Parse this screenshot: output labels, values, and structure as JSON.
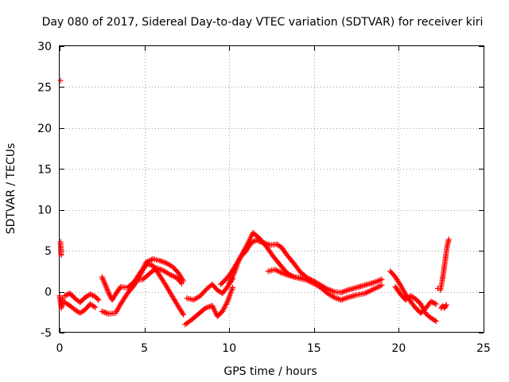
{
  "chart_data": {
    "type": "scatter",
    "title": "Day 080 of 2017, Sidereal Day-to-day VTEC variation (SDTVAR) for receiver kiri",
    "xlabel": "GPS time / hours",
    "ylabel": "SDTVAR / TECUs",
    "xlim": [
      0,
      25
    ],
    "ylim": [
      -5,
      30
    ],
    "xticks": [
      0,
      5,
      10,
      15,
      20,
      25
    ],
    "yticks": [
      -5,
      0,
      5,
      10,
      15,
      20,
      25,
      30
    ],
    "xtick_labels": [
      "0",
      "5",
      "10",
      "15",
      "20",
      "25"
    ],
    "ytick_labels": [
      "-5",
      "0",
      "5",
      "10",
      "15",
      "20",
      "25",
      "30"
    ],
    "grid": true,
    "marker": "+",
    "color": "#ff0000",
    "series": [
      {
        "name": "SDTVAR",
        "tracks": [
          [
            [
              0.05,
              25.8
            ]
          ],
          [
            [
              0.05,
              6.1
            ],
            [
              0.08,
              4.6
            ],
            [
              0.1,
              4.5
            ]
          ],
          [
            [
              0.0,
              -0.5
            ],
            [
              0.05,
              -1.2
            ],
            [
              0.1,
              -2.0
            ],
            [
              0.15,
              -1.5
            ],
            [
              0.2,
              -0.8
            ]
          ],
          [
            [
              0.3,
              -0.5
            ],
            [
              0.6,
              -0.2
            ],
            [
              0.9,
              -0.8
            ],
            [
              1.2,
              -1.3
            ],
            [
              1.5,
              -0.7
            ],
            [
              1.8,
              -0.3
            ],
            [
              2.1,
              -0.6
            ],
            [
              2.3,
              -1.0
            ]
          ],
          [
            [
              0.3,
              -1.3
            ],
            [
              0.6,
              -1.7
            ],
            [
              0.9,
              -2.2
            ],
            [
              1.2,
              -2.6
            ],
            [
              1.5,
              -2.2
            ],
            [
              1.8,
              -1.5
            ],
            [
              2.1,
              -1.9
            ]
          ],
          [
            [
              2.5,
              1.8
            ],
            [
              2.7,
              0.8
            ],
            [
              2.9,
              -0.2
            ],
            [
              3.1,
              -1.0
            ],
            [
              3.3,
              -0.3
            ],
            [
              3.6,
              0.6
            ],
            [
              4.0,
              0.5
            ],
            [
              4.4,
              1.2
            ],
            [
              4.8,
              2.5
            ],
            [
              5.2,
              3.4
            ],
            [
              5.5,
              3.2
            ],
            [
              5.8,
              2.3
            ],
            [
              6.2,
              1.0
            ],
            [
              6.6,
              -0.4
            ],
            [
              7.0,
              -1.8
            ],
            [
              7.3,
              -2.8
            ]
          ],
          [
            [
              2.5,
              -2.4
            ],
            [
              2.9,
              -2.7
            ],
            [
              3.3,
              -2.6
            ],
            [
              3.6,
              -1.5
            ],
            [
              4.0,
              -0.2
            ],
            [
              4.4,
              0.8
            ],
            [
              4.8,
              2.2
            ],
            [
              5.1,
              3.6
            ],
            [
              5.5,
              4.0
            ],
            [
              5.9,
              3.8
            ],
            [
              6.3,
              3.5
            ],
            [
              6.7,
              3.0
            ],
            [
              7.0,
              2.3
            ],
            [
              7.3,
              1.3
            ]
          ],
          [
            [
              4.5,
              1.4
            ],
            [
              4.9,
              1.5
            ],
            [
              5.3,
              2.2
            ],
            [
              5.7,
              2.9
            ],
            [
              6.1,
              2.6
            ],
            [
              6.5,
              2.1
            ],
            [
              6.9,
              1.7
            ],
            [
              7.2,
              1.0
            ]
          ],
          [
            [
              7.4,
              -4.0
            ],
            [
              7.8,
              -3.4
            ],
            [
              8.2,
              -2.7
            ],
            [
              8.6,
              -2.0
            ],
            [
              9.0,
              -1.7
            ],
            [
              9.3,
              -3.0
            ],
            [
              9.6,
              -2.4
            ],
            [
              9.9,
              -1.2
            ],
            [
              10.2,
              0.5
            ]
          ],
          [
            [
              7.5,
              -0.8
            ],
            [
              7.9,
              -1.0
            ],
            [
              8.3,
              -0.5
            ],
            [
              8.7,
              0.4
            ],
            [
              9.0,
              0.9
            ],
            [
              9.3,
              0.2
            ],
            [
              9.6,
              -0.2
            ],
            [
              9.9,
              0.6
            ],
            [
              10.2,
              1.6
            ]
          ],
          [
            [
              9.5,
              0.9
            ],
            [
              9.8,
              1.5
            ],
            [
              10.1,
              2.3
            ],
            [
              10.4,
              3.3
            ],
            [
              10.7,
              4.3
            ],
            [
              11.0,
              5.0
            ],
            [
              11.3,
              6.0
            ],
            [
              11.6,
              6.3
            ],
            [
              12.0,
              6.0
            ],
            [
              12.4,
              5.7
            ],
            [
              12.8,
              5.8
            ],
            [
              13.1,
              5.4
            ],
            [
              13.4,
              4.5
            ],
            [
              13.8,
              3.5
            ],
            [
              14.2,
              2.4
            ],
            [
              14.6,
              1.7
            ],
            [
              15.0,
              1.3
            ],
            [
              15.4,
              0.8
            ],
            [
              15.8,
              0.3
            ],
            [
              16.2,
              0.0
            ],
            [
              16.6,
              -0.1
            ],
            [
              17.0,
              0.2
            ],
            [
              17.5,
              0.5
            ],
            [
              18.0,
              0.8
            ],
            [
              18.5,
              1.1
            ],
            [
              19.0,
              1.5
            ]
          ],
          [
            [
              10.0,
              1.0
            ],
            [
              10.3,
              2.3
            ],
            [
              10.6,
              4.0
            ],
            [
              11.0,
              5.5
            ],
            [
              11.4,
              7.2
            ],
            [
              11.8,
              6.5
            ],
            [
              12.2,
              5.5
            ],
            [
              12.6,
              4.3
            ],
            [
              13.0,
              3.3
            ],
            [
              13.4,
              2.3
            ],
            [
              13.8,
              1.8
            ],
            [
              14.2,
              1.6
            ],
            [
              14.6,
              1.4
            ],
            [
              15.0,
              1.0
            ],
            [
              15.4,
              0.5
            ],
            [
              15.8,
              -0.2
            ],
            [
              16.2,
              -0.7
            ],
            [
              16.6,
              -1.0
            ],
            [
              17.0,
              -0.7
            ],
            [
              17.5,
              -0.4
            ],
            [
              18.0,
              -0.2
            ],
            [
              18.5,
              0.3
            ],
            [
              19.0,
              0.8
            ]
          ],
          [
            [
              12.3,
              2.5
            ],
            [
              12.7,
              2.7
            ],
            [
              13.1,
              2.3
            ],
            [
              13.5,
              2.0
            ],
            [
              13.9,
              1.8
            ],
            [
              14.3,
              1.7
            ]
          ],
          [
            [
              19.5,
              2.5
            ],
            [
              19.8,
              1.8
            ],
            [
              20.1,
              0.8
            ],
            [
              20.4,
              -0.3
            ],
            [
              20.7,
              -1.2
            ],
            [
              21.0,
              -2.0
            ],
            [
              21.3,
              -2.6
            ],
            [
              21.6,
              -2.0
            ],
            [
              21.9,
              -1.2
            ],
            [
              22.2,
              -1.5
            ]
          ],
          [
            [
              19.8,
              0.6
            ],
            [
              20.1,
              -0.3
            ],
            [
              20.4,
              -1.0
            ],
            [
              20.7,
              -0.5
            ],
            [
              21.0,
              -0.9
            ],
            [
              21.3,
              -1.5
            ],
            [
              21.6,
              -2.7
            ],
            [
              21.9,
              -3.2
            ],
            [
              22.2,
              -3.6
            ]
          ],
          [
            [
              22.3,
              0.4
            ]
          ],
          [
            [
              22.5,
              -2.0
            ],
            [
              22.6,
              -1.7
            ],
            [
              22.7,
              -2.0
            ],
            [
              22.8,
              -1.6
            ]
          ],
          [
            [
              22.45,
              0.2
            ],
            [
              22.55,
              1.2
            ],
            [
              22.65,
              2.5
            ],
            [
              22.75,
              4.0
            ],
            [
              22.85,
              5.5
            ],
            [
              22.95,
              6.4
            ]
          ]
        ]
      }
    ]
  }
}
